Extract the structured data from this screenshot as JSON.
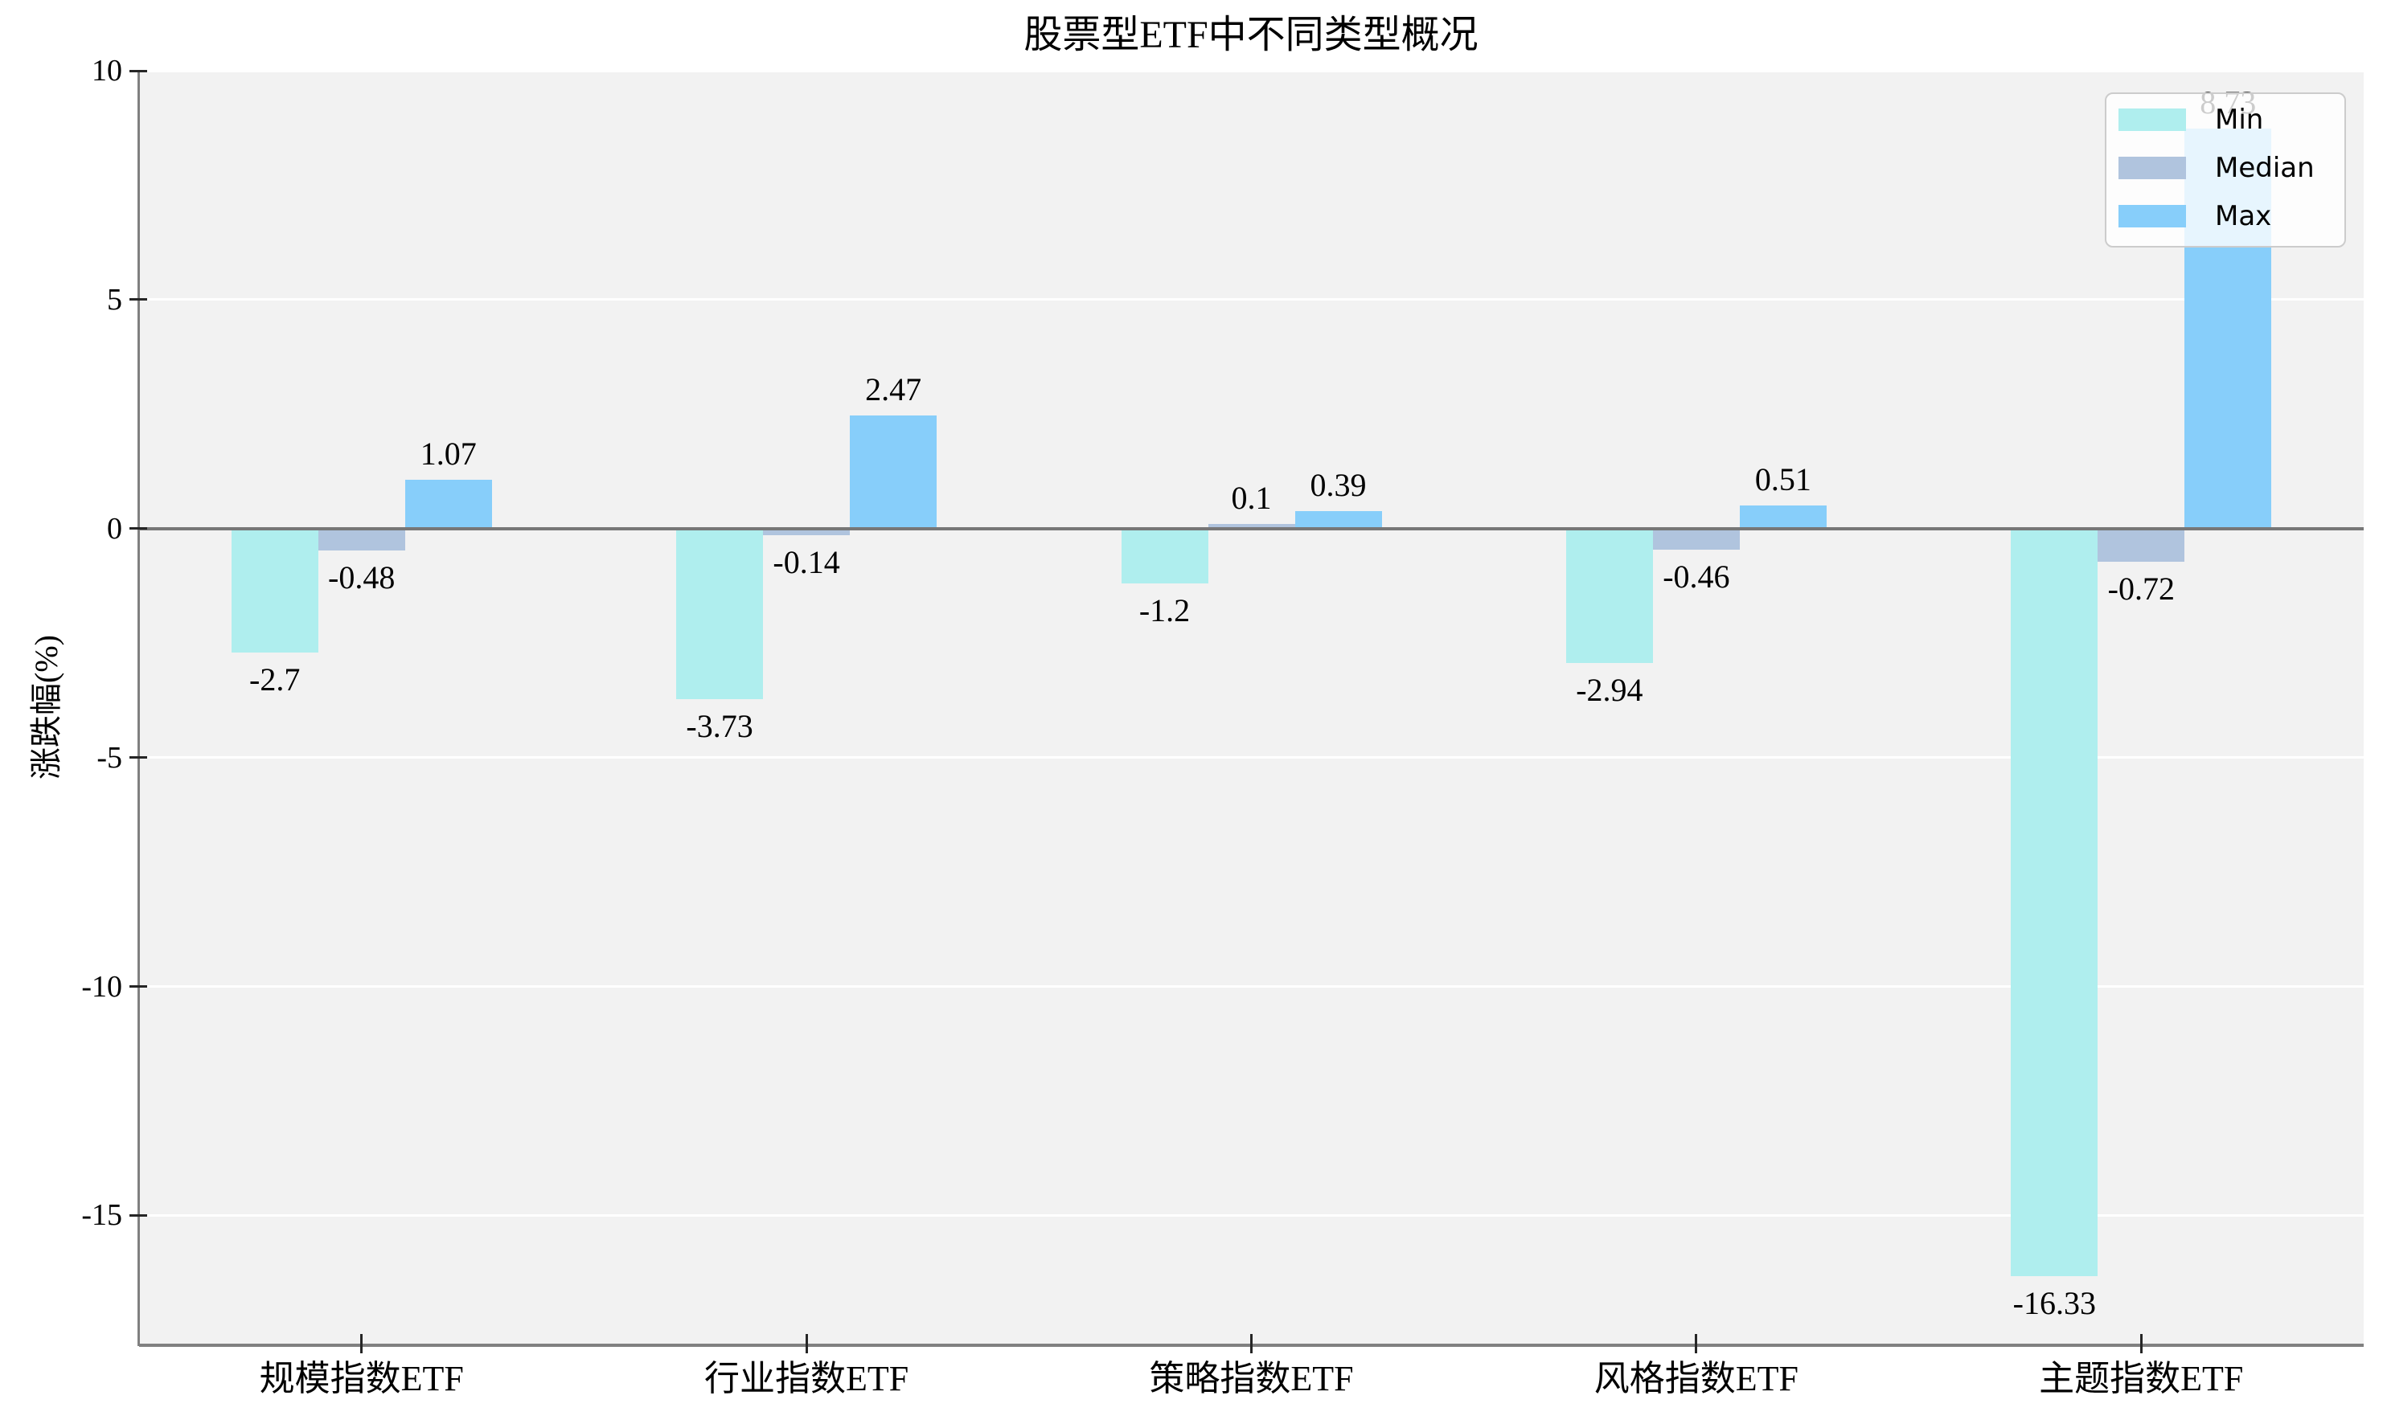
{
  "chart_data": {
    "type": "bar",
    "title": "股票型ETF中不同类型概况",
    "ylabel": "涨跌幅(%)",
    "xlabel": "",
    "categories": [
      "规模指数ETF",
      "行业指数ETF",
      "策略指数ETF",
      "风格指数ETF",
      "主题指数ETF"
    ],
    "series": [
      {
        "name": "Min",
        "color": "#AFEEEE",
        "values": [
          -2.7,
          -3.73,
          -1.2,
          -2.94,
          -16.33
        ]
      },
      {
        "name": "Median",
        "color": "#B0C4DE",
        "values": [
          -0.48,
          -0.14,
          0.1,
          -0.46,
          -0.72
        ]
      },
      {
        "name": "Max",
        "color": "#87CEFA",
        "values": [
          1.07,
          2.47,
          0.39,
          0.51,
          8.73
        ]
      }
    ],
    "yticks": [
      10,
      5,
      0,
      -5,
      -10,
      -15
    ],
    "ylim": [
      -17.8,
      10
    ],
    "grid": true,
    "value_labels": true,
    "legend_position": "upper right",
    "colors": {
      "plot_bg": "#f2f2f2",
      "grid": "#ffffff",
      "spine": "#808080",
      "zero_line": "#777777",
      "tick_mark": "#262626",
      "text": "#000000",
      "legend_bg": "rgba(255,255,255,0.8)",
      "legend_border": "#cccccc"
    }
  }
}
